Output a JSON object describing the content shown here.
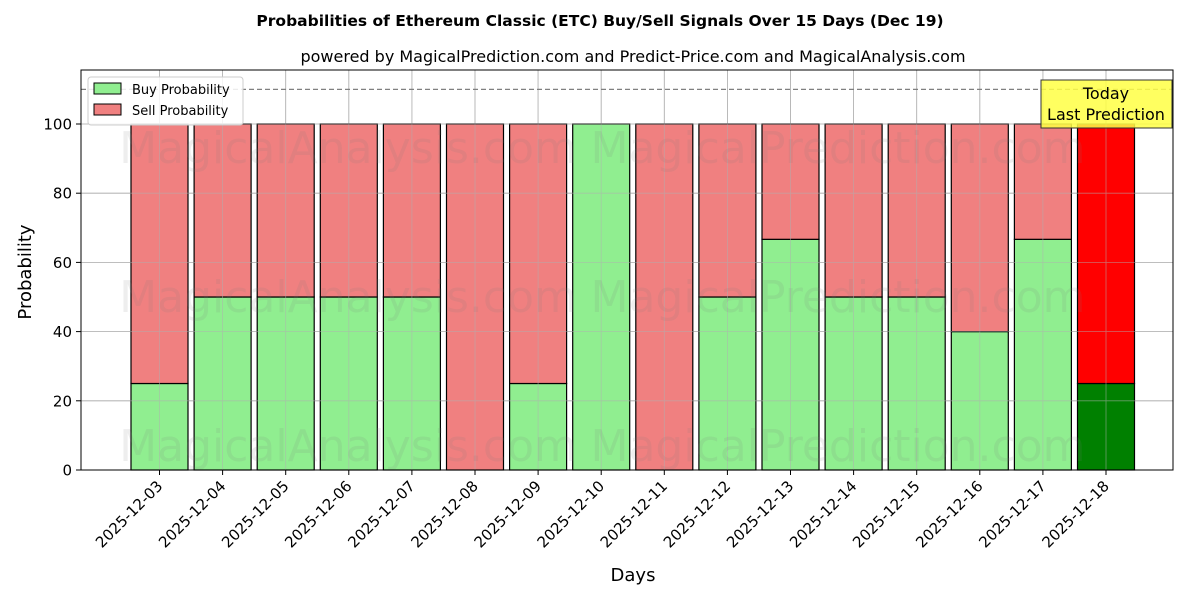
{
  "chart_data": {
    "type": "bar",
    "stacked": true,
    "title": "Probabilities of Ethereum Classic (ETC) Buy/Sell Signals Over 15 Days (Dec 19)",
    "subtitle": "powered by MagicalPrediction.com and Predict-Price.com and MagicalAnalysis.com",
    "xlabel": "Days",
    "ylabel": "Probability",
    "ylim": [
      0,
      115
    ],
    "yticks": [
      0,
      20,
      40,
      60,
      80,
      100
    ],
    "grid": true,
    "legend_position": "upper left",
    "categories": [
      "2025-12-03",
      "2025-12-04",
      "2025-12-05",
      "2025-12-06",
      "2025-12-07",
      "2025-12-08",
      "2025-12-09",
      "2025-12-10",
      "2025-12-11",
      "2025-12-12",
      "2025-12-13",
      "2025-12-14",
      "2025-12-15",
      "2025-12-16",
      "2025-12-17",
      "2025-12-18"
    ],
    "series": [
      {
        "name": "Buy Probability",
        "color": "#90ee90",
        "values": [
          25,
          50,
          50,
          50,
          50,
          0,
          25,
          100,
          0,
          50,
          66.67,
          50,
          50,
          40,
          66.67,
          25
        ]
      },
      {
        "name": "Sell Probability",
        "color": "#f08080",
        "values": [
          75,
          50,
          50,
          50,
          50,
          100,
          75,
          0,
          100,
          50,
          33.33,
          50,
          50,
          60,
          33.33,
          75
        ]
      }
    ],
    "highlight": {
      "index": 15,
      "buy_color": "#008000",
      "sell_color": "#ff0000"
    },
    "reference_line": {
      "y": 110,
      "style": "dashed",
      "color": "#808080"
    },
    "annotation": {
      "line1": "Today",
      "line2": "Last Prediction",
      "background": "#ffff44"
    },
    "watermarks": [
      "MagicalAnalysis.com",
      "MagicalPrediction.com"
    ]
  }
}
